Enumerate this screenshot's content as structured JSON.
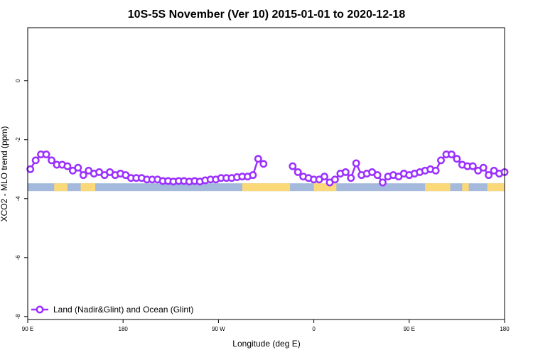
{
  "chart_data": {
    "type": "line",
    "title": "10S-5S November (Ver 10)   2015-01-01 to 2020-12-18",
    "xlabel": "Longitude (deg E)",
    "ylabel": "XCO2 - MLO trend (ppm)",
    "xlim": [
      90,
      450
    ],
    "ylim": [
      -8.1,
      1.8
    ],
    "x_ticks": [
      90,
      162,
      234,
      306,
      378,
      450
    ],
    "x_tick_labels": [
      "90 E",
      "180",
      "90 W",
      "0",
      "90 E",
      "180"
    ],
    "y_ticks": [
      0,
      -2,
      -4,
      -6,
      -8
    ],
    "y_tick_labels": [
      "0",
      "-2",
      "-4",
      "-6",
      "-8"
    ],
    "grid": false,
    "legend_position": "bottom-left",
    "series": [
      {
        "name": "Land (Nadir&Glint) and Ocean (Glint)",
        "color": "#9b30ff",
        "x": [
          92,
          96,
          100,
          104,
          108,
          112,
          116,
          120,
          124,
          128,
          132,
          136,
          140,
          144,
          148,
          152,
          156,
          160,
          164,
          168,
          172,
          176,
          180,
          184,
          188,
          192,
          196,
          200,
          204,
          208,
          212,
          216,
          220,
          224,
          228,
          232,
          236,
          240,
          244,
          248,
          252,
          256,
          260,
          264,
          null,
          268,
          272,
          null,
          290,
          294,
          298,
          302,
          306,
          310,
          314,
          318,
          322,
          326,
          330,
          334,
          338,
          342,
          346,
          350,
          354,
          358,
          362,
          366,
          370,
          374,
          378,
          382,
          386,
          390,
          394,
          398,
          402,
          406,
          410,
          414,
          418,
          422,
          426,
          430,
          434,
          438,
          442,
          446,
          450
        ],
        "y": [
          -3.0,
          -2.7,
          -2.5,
          -2.5,
          -2.7,
          -2.85,
          -2.85,
          -2.9,
          -3.05,
          -2.95,
          -3.2,
          -3.05,
          -3.15,
          -3.1,
          -3.2,
          -3.1,
          -3.2,
          -3.15,
          -3.2,
          -3.3,
          -3.3,
          -3.3,
          -3.35,
          -3.35,
          -3.35,
          -3.4,
          -3.4,
          -3.42,
          -3.4,
          -3.4,
          -3.42,
          -3.4,
          -3.42,
          -3.38,
          -3.35,
          -3.35,
          -3.3,
          -3.3,
          -3.3,
          -3.27,
          -3.25,
          -3.25,
          -3.2,
          -2.65,
          null,
          -2.82,
          null,
          -2.75,
          -2.9,
          -3.1,
          -3.25,
          -3.3,
          -3.35,
          -3.35,
          -3.25,
          -3.45,
          -3.35,
          -3.15,
          -3.1,
          -3.3,
          -2.8,
          -3.2,
          -3.15,
          -3.1,
          -3.2,
          -3.45,
          -3.25,
          -3.2,
          -3.25,
          -3.15,
          -3.2,
          -3.15,
          -3.1,
          -3.05,
          -3.0,
          -3.05,
          -2.7,
          -2.5,
          -2.5,
          -2.65,
          -2.85,
          -2.9,
          -2.9,
          -3.05,
          -2.95,
          -3.2,
          -3.05,
          -3.15,
          -3.1
        ]
      }
    ],
    "map_strip": {
      "y_value": -3.6,
      "ocean_color": "#a4b9dc",
      "land_color": "#fcd978",
      "land_segments": [
        [
          110,
          120
        ],
        [
          130,
          141
        ],
        [
          252,
          288
        ],
        [
          306,
          323
        ],
        [
          390,
          409
        ],
        [
          418,
          423
        ],
        [
          437,
          450
        ]
      ]
    }
  }
}
